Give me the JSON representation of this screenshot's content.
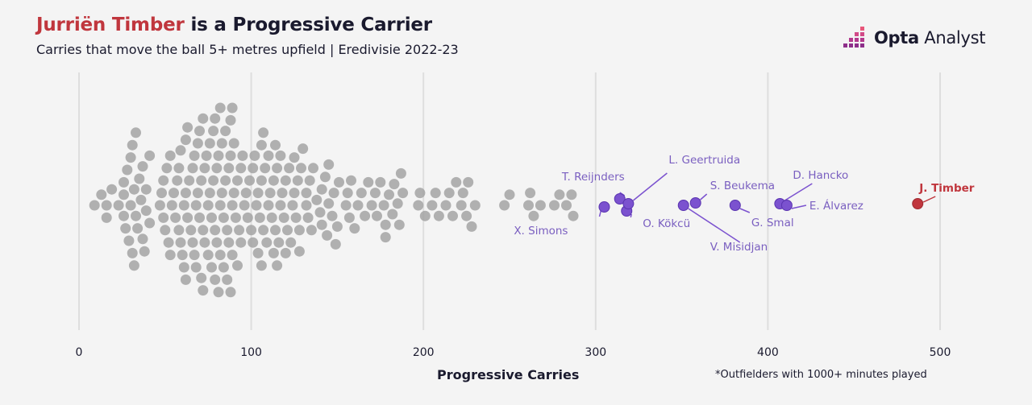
{
  "header": {
    "title_highlight": "Jurriën Timber",
    "title_rest": " is a Progressive Carrier",
    "subtitle": "Carries that move the ball 5+ metres upfield | Eredivisie 2022-23"
  },
  "brand": {
    "name_bold": "Opta",
    "name_rest": " Analyst",
    "logo_icon": "opta-bar-logo-icon"
  },
  "colors": {
    "background": "#f4f4f4",
    "other_players": "#a3a3a3",
    "named_players": "#7b52cf",
    "highlight_player": "#c0363d",
    "annotation_text": "#7a5fc0"
  },
  "chart_data": {
    "type": "beeswarm",
    "title": "Jurriën Timber is a Progressive Carrier",
    "subtitle": "Carries that move the ball 5+ metres upfield | Eredivisie 2022-23",
    "xlabel": "Progressive Carries",
    "xlim": [
      0,
      500
    ],
    "xticks": [
      0,
      100,
      200,
      300,
      400,
      500
    ],
    "grid": true,
    "footnote": "*Outfielders with 1000+ minutes played",
    "highlight": {
      "name": "J. Timber",
      "value": 487
    },
    "named_players": [
      {
        "name": "X. Simons",
        "value": 305
      },
      {
        "name": "T. Reijnders",
        "value": 314
      },
      {
        "name": "O. Kökcü",
        "value": 318
      },
      {
        "name": "L. Geertruida",
        "value": 319
      },
      {
        "name": "V. Misidjan",
        "value": 351
      },
      {
        "name": "S. Beukema",
        "value": 358
      },
      {
        "name": "G. Smal",
        "value": 381
      },
      {
        "name": "D. Hancko",
        "value": 407
      },
      {
        "name": "E. Álvarez",
        "value": 411
      }
    ],
    "other_players_values": [
      9,
      13,
      16,
      16,
      19,
      23,
      26,
      26,
      26,
      27,
      28,
      29,
      30,
      30,
      31,
      31,
      32,
      32,
      33,
      33,
      34,
      35,
      36,
      37,
      37,
      38,
      39,
      39,
      41,
      41,
      47,
      48,
      49,
      49,
      50,
      51,
      52,
      53,
      53,
      54,
      55,
      56,
      57,
      58,
      58,
      59,
      59,
      60,
      61,
      61,
      62,
      62,
      62,
      63,
      63,
      64,
      65,
      66,
      66,
      67,
      67,
      68,
      68,
      69,
      69,
      70,
      70,
      71,
      71,
      72,
      72,
      72,
      73,
      73,
      74,
      75,
      75,
      76,
      76,
      77,
      77,
      78,
      78,
      79,
      79,
      79,
      80,
      80,
      81,
      81,
      82,
      82,
      82,
      83,
      83,
      84,
      84,
      85,
      85,
      86,
      86,
      87,
      87,
      88,
      88,
      88,
      89,
      89,
      89,
      90,
      90,
      91,
      92,
      92,
      93,
      94,
      94,
      95,
      96,
      97,
      98,
      99,
      100,
      101,
      101,
      102,
      103,
      104,
      104,
      105,
      106,
      106,
      106,
      107,
      107,
      108,
      109,
      110,
      110,
      111,
      112,
      113,
      113,
      114,
      114,
      115,
      115,
      116,
      117,
      117,
      118,
      119,
      120,
      120,
      121,
      122,
      123,
      124,
      125,
      125,
      126,
      127,
      128,
      128,
      129,
      130,
      132,
      132,
      133,
      134,
      135,
      136,
      138,
      140,
      141,
      141,
      143,
      144,
      145,
      145,
      147,
      148,
      149,
      150,
      151,
      155,
      156,
      157,
      158,
      160,
      162,
      164,
      166,
      168,
      170,
      172,
      173,
      175,
      177,
      178,
      178,
      180,
      182,
      183,
      185,
      186,
      187,
      188,
      197,
      198,
      201,
      205,
      207,
      209,
      213,
      215,
      217,
      219,
      222,
      223,
      225,
      226,
      228,
      230,
      247,
      250,
      261,
      262,
      264,
      268,
      276,
      279,
      283,
      286,
      287
    ]
  }
}
